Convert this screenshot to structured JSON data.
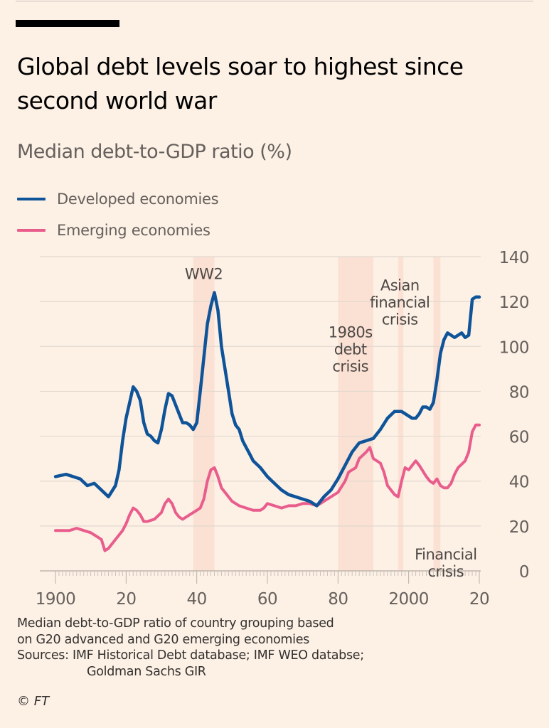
{
  "header": {
    "title": "Global debt levels soar to highest since second world war",
    "subtitle": "Median debt-to-GDP ratio (%)"
  },
  "colors": {
    "background": "#fdf1e6",
    "developed": "#0f5499",
    "emerging": "#e95d8c",
    "shade": "#fbe1d4",
    "grid": "#e2d8ce"
  },
  "footer": {
    "note_line1": "Median debt-to-GDP ratio of country grouping based",
    "note_line2": "on G20 advanced and G20 emerging economies",
    "sources_line1": "Sources: IMF Historical Debt database; IMF WEO databse;",
    "sources_line2": "Goldman Sachs GIR",
    "credit": "© FT"
  },
  "chart_data": {
    "type": "line",
    "title": "Global debt levels soar to highest since second world war",
    "ylabel": "Median debt-to-GDP ratio (%)",
    "xlabel": "",
    "xlim": [
      1900,
      2020
    ],
    "ylim": [
      0,
      140
    ],
    "yticks": [
      0,
      20,
      40,
      60,
      80,
      100,
      120,
      140
    ],
    "xticks": [
      {
        "value": 1900,
        "label": "1900"
      },
      {
        "value": 1920,
        "label": "20"
      },
      {
        "value": 1940,
        "label": "40"
      },
      {
        "value": 1960,
        "label": "60"
      },
      {
        "value": 1980,
        "label": "80"
      },
      {
        "value": 2000,
        "label": "2000"
      },
      {
        "value": 2020,
        "label": "20"
      }
    ],
    "grid": true,
    "legend_position": "top-left",
    "shaded_periods": [
      {
        "label": "WW2",
        "start": 1939,
        "end": 1945
      },
      {
        "label": "1980s debt crisis",
        "start": 1980,
        "end": 1990
      },
      {
        "label": "Asian financial crisis",
        "start": 1997,
        "end": 1998.5
      },
      {
        "label": "Financial crisis",
        "start": 2007,
        "end": 2009
      }
    ],
    "annotations": [
      {
        "lines": [
          "WW2"
        ],
        "x": 1942,
        "y": 130
      },
      {
        "lines": [
          "1980s",
          "debt",
          "crisis"
        ],
        "x": 1983.5,
        "y": 104
      },
      {
        "lines": [
          "Asian",
          "financial",
          "crisis"
        ],
        "x": 1997.5,
        "y": 125
      },
      {
        "lines": [
          "Financial",
          "crisis"
        ],
        "x": 2010.5,
        "y": 5
      }
    ],
    "series": [
      {
        "name": "Developed economies",
        "color": "#0f5499",
        "points": [
          [
            1900,
            42
          ],
          [
            1903,
            43
          ],
          [
            1905,
            42
          ],
          [
            1907,
            41
          ],
          [
            1909,
            38
          ],
          [
            1911,
            39
          ],
          [
            1913,
            36
          ],
          [
            1915,
            33
          ],
          [
            1917,
            38
          ],
          [
            1918,
            45
          ],
          [
            1919,
            58
          ],
          [
            1920,
            68
          ],
          [
            1921,
            75
          ],
          [
            1922,
            82
          ],
          [
            1923,
            80
          ],
          [
            1924,
            76
          ],
          [
            1925,
            66
          ],
          [
            1926,
            61
          ],
          [
            1927,
            60
          ],
          [
            1928,
            58
          ],
          [
            1929,
            57
          ],
          [
            1930,
            63
          ],
          [
            1931,
            72
          ],
          [
            1932,
            79
          ],
          [
            1933,
            78
          ],
          [
            1934,
            74
          ],
          [
            1935,
            70
          ],
          [
            1936,
            66
          ],
          [
            1937,
            66
          ],
          [
            1938,
            65
          ],
          [
            1939,
            63
          ],
          [
            1940,
            66
          ],
          [
            1941,
            80
          ],
          [
            1942,
            95
          ],
          [
            1943,
            110
          ],
          [
            1944,
            118
          ],
          [
            1945,
            124
          ],
          [
            1946,
            116
          ],
          [
            1947,
            100
          ],
          [
            1948,
            90
          ],
          [
            1949,
            80
          ],
          [
            1950,
            70
          ],
          [
            1951,
            65
          ],
          [
            1952,
            63
          ],
          [
            1953,
            58
          ],
          [
            1954,
            55
          ],
          [
            1955,
            52
          ],
          [
            1956,
            49
          ],
          [
            1958,
            46
          ],
          [
            1960,
            42
          ],
          [
            1962,
            39
          ],
          [
            1964,
            36
          ],
          [
            1966,
            34
          ],
          [
            1968,
            33
          ],
          [
            1970,
            32
          ],
          [
            1972,
            31
          ],
          [
            1974,
            29
          ],
          [
            1976,
            33
          ],
          [
            1978,
            36
          ],
          [
            1980,
            41
          ],
          [
            1982,
            47
          ],
          [
            1984,
            53
          ],
          [
            1986,
            57
          ],
          [
            1988,
            58
          ],
          [
            1990,
            59
          ],
          [
            1992,
            63
          ],
          [
            1994,
            68
          ],
          [
            1996,
            71
          ],
          [
            1998,
            71
          ],
          [
            2000,
            69
          ],
          [
            2001,
            68
          ],
          [
            2002,
            68
          ],
          [
            2003,
            70
          ],
          [
            2004,
            73
          ],
          [
            2005,
            73
          ],
          [
            2006,
            72
          ],
          [
            2007,
            75
          ],
          [
            2008,
            85
          ],
          [
            2009,
            97
          ],
          [
            2010,
            103
          ],
          [
            2011,
            106
          ],
          [
            2012,
            105
          ],
          [
            2013,
            104
          ],
          [
            2014,
            105
          ],
          [
            2015,
            106
          ],
          [
            2016,
            104
          ],
          [
            2017,
            105
          ],
          [
            2018,
            121
          ],
          [
            2019,
            122
          ],
          [
            2020,
            122
          ]
        ]
      },
      {
        "name": "Emerging economies",
        "color": "#e95d8c",
        "points": [
          [
            1900,
            18
          ],
          [
            1902,
            18
          ],
          [
            1904,
            18
          ],
          [
            1906,
            19
          ],
          [
            1908,
            18
          ],
          [
            1910,
            17
          ],
          [
            1912,
            15
          ],
          [
            1913,
            14
          ],
          [
            1914,
            9
          ],
          [
            1915,
            10
          ],
          [
            1917,
            14
          ],
          [
            1919,
            18
          ],
          [
            1920,
            21
          ],
          [
            1921,
            25
          ],
          [
            1922,
            28
          ],
          [
            1923,
            27
          ],
          [
            1924,
            25
          ],
          [
            1925,
            22
          ],
          [
            1926,
            22
          ],
          [
            1928,
            23
          ],
          [
            1930,
            26
          ],
          [
            1931,
            30
          ],
          [
            1932,
            32
          ],
          [
            1933,
            30
          ],
          [
            1934,
            26
          ],
          [
            1935,
            24
          ],
          [
            1936,
            23
          ],
          [
            1938,
            25
          ],
          [
            1940,
            27
          ],
          [
            1941,
            28
          ],
          [
            1942,
            32
          ],
          [
            1943,
            40
          ],
          [
            1944,
            45
          ],
          [
            1945,
            46
          ],
          [
            1946,
            42
          ],
          [
            1947,
            37
          ],
          [
            1948,
            35
          ],
          [
            1950,
            31
          ],
          [
            1952,
            29
          ],
          [
            1954,
            28
          ],
          [
            1956,
            27
          ],
          [
            1958,
            27
          ],
          [
            1959,
            28
          ],
          [
            1960,
            30
          ],
          [
            1962,
            29
          ],
          [
            1964,
            28
          ],
          [
            1966,
            29
          ],
          [
            1968,
            29
          ],
          [
            1970,
            30
          ],
          [
            1972,
            30
          ],
          [
            1974,
            29
          ],
          [
            1976,
            31
          ],
          [
            1978,
            33
          ],
          [
            1980,
            35
          ],
          [
            1982,
            40
          ],
          [
            1983,
            44
          ],
          [
            1985,
            46
          ],
          [
            1986,
            50
          ],
          [
            1988,
            53
          ],
          [
            1989,
            55
          ],
          [
            1990,
            50
          ],
          [
            1992,
            48
          ],
          [
            1993,
            44
          ],
          [
            1994,
            38
          ],
          [
            1996,
            34
          ],
          [
            1997,
            33
          ],
          [
            1998,
            40
          ],
          [
            1999,
            46
          ],
          [
            2000,
            45
          ],
          [
            2001,
            47
          ],
          [
            2002,
            49
          ],
          [
            2003,
            47
          ],
          [
            2005,
            42
          ],
          [
            2006,
            40
          ],
          [
            2007,
            39
          ],
          [
            2008,
            41
          ],
          [
            2009,
            38
          ],
          [
            2010,
            37
          ],
          [
            2011,
            37
          ],
          [
            2012,
            39
          ],
          [
            2013,
            43
          ],
          [
            2014,
            46
          ],
          [
            2016,
            49
          ],
          [
            2017,
            53
          ],
          [
            2018,
            62
          ],
          [
            2019,
            65
          ],
          [
            2020,
            65
          ]
        ]
      }
    ]
  }
}
